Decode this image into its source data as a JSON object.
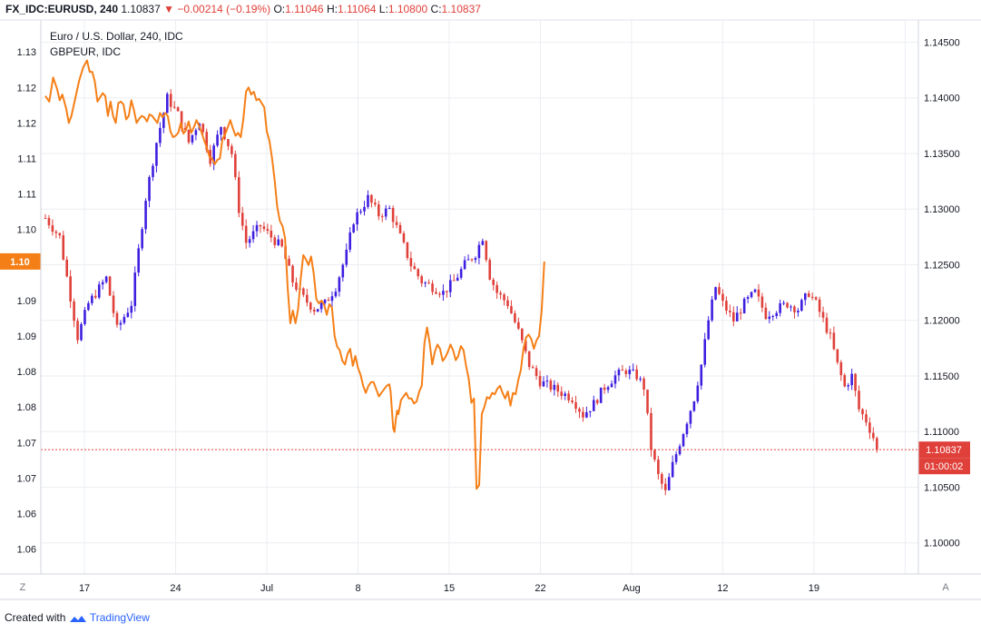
{
  "header": {
    "symbol": "FX_IDC:EURUSD, 240",
    "last": "1.10837",
    "arrow": "▼",
    "change": "−0.00214 (−0.19%)",
    "o_label": "O:",
    "o_value": "1.11046",
    "h_label": "H:",
    "h_value": "1.11064",
    "l_label": "L:",
    "l_value": "1.10800",
    "c_label": "C:",
    "c_value": "1.10837"
  },
  "legend": {
    "main_series": "Euro / U.S. Dollar, 240, IDC",
    "compare_series": "GBPEUR, IDC"
  },
  "badges": {
    "left_value": "1.10",
    "right_price": "1.10837",
    "right_countdown": "01:00:02"
  },
  "buttons": {
    "left": "Z",
    "right": "A"
  },
  "footer": {
    "created_with": "Created with",
    "brand": "TradingView"
  },
  "colors": {
    "up": "#3e1fe0",
    "down": "#e0403a",
    "compare_line": "#f57f17",
    "last_line": "#e0403a",
    "grid": "#eceef2"
  },
  "chart_data": [
    {
      "type": "candlestick",
      "name": "Euro / U.S. Dollar, 240, IDC",
      "axis": "right",
      "y_ticks": [
        1.145,
        1.14,
        1.135,
        1.13,
        1.125,
        1.12,
        1.115,
        1.11,
        1.105,
        1.1
      ],
      "y_tick_labels": [
        "1.14500",
        "1.14000",
        "1.13500",
        "1.13000",
        "1.12500",
        "1.12000",
        "1.11500",
        "1.11000",
        "1.10500",
        "1.10000"
      ],
      "ylim": [
        1.0972,
        1.147
      ],
      "last_value": 1.10837,
      "path": [
        [
          0,
          1.1292
        ],
        [
          4,
          1.1275
        ],
        [
          9,
          1.1185
        ],
        [
          12,
          1.1215
        ],
        [
          17,
          1.1238
        ],
        [
          20,
          1.1192
        ],
        [
          24,
          1.1215
        ],
        [
          28,
          1.131
        ],
        [
          31,
          1.136
        ],
        [
          34,
          1.14
        ],
        [
          37,
          1.1385
        ],
        [
          40,
          1.136
        ],
        [
          43,
          1.138
        ],
        [
          46,
          1.1345
        ],
        [
          49,
          1.1375
        ],
        [
          52,
          1.135
        ],
        [
          54,
          1.13
        ],
        [
          56,
          1.127
        ],
        [
          60,
          1.1285
        ],
        [
          63,
          1.1275
        ],
        [
          66,
          1.1265
        ],
        [
          69,
          1.1235
        ],
        [
          72,
          1.122
        ],
        [
          75,
          1.121
        ],
        [
          78,
          1.1215
        ],
        [
          81,
          1.123
        ],
        [
          84,
          1.126
        ],
        [
          86,
          1.129
        ],
        [
          90,
          1.131
        ],
        [
          93,
          1.1295
        ],
        [
          96,
          1.13
        ],
        [
          99,
          1.1275
        ],
        [
          102,
          1.125
        ],
        [
          105,
          1.1235
        ],
        [
          108,
          1.123
        ],
        [
          111,
          1.1225
        ],
        [
          114,
          1.1235
        ],
        [
          117,
          1.125
        ],
        [
          120,
          1.126
        ],
        [
          122,
          1.1275
        ],
        [
          124,
          1.124
        ],
        [
          126,
          1.1225
        ],
        [
          129,
          1.1215
        ],
        [
          132,
          1.119
        ],
        [
          135,
          1.116
        ],
        [
          138,
          1.1145
        ],
        [
          141,
          1.114
        ],
        [
          144,
          1.1135
        ],
        [
          147,
          1.113
        ],
        [
          150,
          1.1115
        ],
        [
          153,
          1.1125
        ],
        [
          156,
          1.114
        ],
        [
          159,
          1.115
        ],
        [
          162,
          1.1155
        ],
        [
          165,
          1.115
        ],
        [
          167,
          1.114
        ],
        [
          169,
          1.1085
        ],
        [
          171,
          1.106
        ],
        [
          173,
          1.1045
        ],
        [
          175,
          1.107
        ],
        [
          177,
          1.109
        ],
        [
          179,
          1.111
        ],
        [
          181,
          1.113
        ],
        [
          183,
          1.116
        ],
        [
          185,
          1.12
        ],
        [
          187,
          1.123
        ],
        [
          189,
          1.1215
        ],
        [
          192,
          1.12
        ],
        [
          195,
          1.1215
        ],
        [
          198,
          1.1225
        ],
        [
          201,
          1.1205
        ],
        [
          204,
          1.121
        ],
        [
          207,
          1.1215
        ],
        [
          210,
          1.121
        ],
        [
          213,
          1.1225
        ],
        [
          215,
          1.1215
        ],
        [
          217,
          1.12
        ],
        [
          219,
          1.1185
        ],
        [
          221,
          1.116
        ],
        [
          223,
          1.114
        ],
        [
          225,
          1.115
        ],
        [
          227,
          1.112
        ],
        [
          229,
          1.111
        ],
        [
          231,
          1.1095
        ],
        [
          232,
          1.1085
        ]
      ]
    },
    {
      "type": "line",
      "name": "GBPEUR, IDC",
      "axis": "left",
      "y_ticks": [
        1.13,
        1.125,
        1.12,
        1.115,
        1.11,
        1.105,
        1.1,
        1.095,
        1.09,
        1.085,
        1.08,
        1.075,
        1.07,
        1.065,
        1.06
      ],
      "y_tick_labels": [
        "1.13",
        "1.12",
        "1.12",
        "1.11",
        "1.11",
        "1.10",
        "1.10",
        "1.09",
        "1.09",
        "1.08",
        "1.08",
        "1.07",
        "1.07",
        "1.06",
        "1.06"
      ],
      "ylim": [
        1.0565,
        1.1345
      ],
      "last_value": 1.1005,
      "values": [
        [
          0,
          1.1238
        ],
        [
          3,
          1.123
        ],
        [
          6,
          1.1264
        ],
        [
          9,
          1.1248
        ],
        [
          11,
          1.1232
        ],
        [
          13,
          1.124
        ],
        [
          16,
          1.122
        ],
        [
          18,
          1.12
        ],
        [
          20,
          1.121
        ],
        [
          23,
          1.1235
        ],
        [
          26,
          1.126
        ],
        [
          29,
          1.1278
        ],
        [
          32,
          1.1288
        ],
        [
          34,
          1.1272
        ],
        [
          36,
          1.1272
        ],
        [
          38,
          1.1258
        ],
        [
          40,
          1.123
        ],
        [
          42,
          1.1236
        ],
        [
          44,
          1.1242
        ],
        [
          46,
          1.1238
        ],
        [
          48,
          1.121
        ],
        [
          50,
          1.123
        ],
        [
          52,
          1.121
        ],
        [
          54,
          1.12
        ],
        [
          56,
          1.1228
        ],
        [
          58,
          1.123
        ],
        [
          60,
          1.1226
        ],
        [
          62,
          1.1205
        ],
        [
          64,
          1.121
        ],
        [
          66,
          1.1232
        ],
        [
          68,
          1.1218
        ],
        [
          70,
          1.12
        ],
        [
          72,
          1.1206
        ],
        [
          74,
          1.121
        ],
        [
          76,
          1.1208
        ],
        [
          78,
          1.1202
        ],
        [
          80,
          1.1212
        ],
        [
          82,
          1.121
        ],
        [
          84,
          1.1205
        ],
        [
          86,
          1.12
        ],
        [
          88,
          1.1214
        ],
        [
          90,
          1.1208
        ],
        [
          92,
          1.1214
        ],
        [
          94,
          1.121
        ],
        [
          96,
          1.1188
        ],
        [
          98,
          1.118
        ],
        [
          100,
          1.1182
        ],
        [
          102,
          1.1186
        ],
        [
          104,
          1.12
        ],
        [
          106,
          1.1185
        ],
        [
          108,
          1.119
        ],
        [
          110,
          1.1202
        ],
        [
          112,
          1.1186
        ],
        [
          114,
          1.1194
        ],
        [
          116,
          1.1204
        ],
        [
          118,
          1.1196
        ],
        [
          120,
          1.1186
        ],
        [
          122,
          1.1175
        ],
        [
          124,
          1.1165
        ],
        [
          126,
          1.1152
        ],
        [
          128,
          1.115
        ],
        [
          130,
          1.1142
        ],
        [
          132,
          1.1148
        ],
        [
          134,
          1.115
        ],
        [
          136,
          1.1178
        ],
        [
          138,
          1.1184
        ],
        [
          140,
          1.1194
        ],
        [
          142,
          1.1204
        ],
        [
          144,
          1.1192
        ],
        [
          146,
          1.1182
        ],
        [
          148,
          1.1186
        ],
        [
          150,
          1.118
        ],
        [
          152,
          1.1206
        ],
        [
          154,
          1.1244
        ],
        [
          156,
          1.125
        ],
        [
          158,
          1.124
        ],
        [
          160,
          1.1244
        ],
        [
          162,
          1.1232
        ],
        [
          164,
          1.1234
        ],
        [
          166,
          1.1228
        ],
        [
          168,
          1.1222
        ],
        [
          170,
          1.1188
        ],
        [
          172,
          1.1175
        ],
        [
          174,
          1.115
        ],
        [
          176,
          1.112
        ],
        [
          178,
          1.1082
        ],
        [
          180,
          1.1062
        ],
        [
          182,
          1.1055
        ],
        [
          184,
          1.1038
        ],
        [
          186,
          1.0968
        ],
        [
          188,
          1.0918
        ],
        [
          190,
          1.0936
        ],
        [
          192,
          1.0918
        ],
        [
          194,
          1.0938
        ],
        [
          196,
          1.098
        ],
        [
          198,
          1.1014
        ],
        [
          200,
          1.1008
        ],
        [
          202,
          1.1
        ],
        [
          204,
          1.1012
        ],
        [
          206,
          1.0988
        ],
        [
          208,
          1.0952
        ],
        [
          210,
          1.0946
        ],
        [
          212,
          1.095
        ],
        [
          214,
          1.0944
        ],
        [
          216,
          1.093
        ],
        [
          218,
          1.0945
        ],
        [
          220,
          1.094
        ],
        [
          222,
          1.09
        ],
        [
          224,
          1.0885
        ],
        [
          226,
          1.088
        ],
        [
          228,
          1.0865
        ],
        [
          230,
          1.086
        ],
        [
          232,
          1.0875
        ],
        [
          234,
          1.0882
        ],
        [
          236,
          1.0858
        ],
        [
          238,
          1.0872
        ],
        [
          240,
          1.0855
        ],
        [
          242,
          1.0845
        ],
        [
          244,
          1.083
        ],
        [
          246,
          1.082
        ],
        [
          248,
          1.083
        ],
        [
          250,
          1.0835
        ],
        [
          252,
          1.0835
        ],
        [
          254,
          1.0825
        ],
        [
          256,
          1.0815
        ],
        [
          258,
          1.082
        ],
        [
          260,
          1.0825
        ],
        [
          262,
          1.083
        ],
        [
          264,
          1.0832
        ],
        [
          265,
          1.0822
        ],
        [
          267,
          1.077
        ],
        [
          268,
          1.0765
        ],
        [
          269,
          1.0782
        ],
        [
          270,
          1.0795
        ],
        [
          271,
          1.079
        ],
        [
          273,
          1.081
        ],
        [
          275,
          1.0815
        ],
        [
          277,
          1.082
        ],
        [
          279,
          1.0812
        ],
        [
          281,
          1.0812
        ],
        [
          283,
          1.0805
        ],
        [
          285,
          1.0808
        ],
        [
          287,
          1.0822
        ],
        [
          289,
          1.083
        ],
        [
          291,
          1.089
        ],
        [
          293,
          1.0912
        ],
        [
          295,
          1.089
        ],
        [
          297,
          1.086
        ],
        [
          299,
          1.0878
        ],
        [
          301,
          1.0888
        ],
        [
          303,
          1.0882
        ],
        [
          305,
          1.0865
        ],
        [
          307,
          1.087
        ],
        [
          309,
          1.0878
        ],
        [
          311,
          1.0888
        ],
        [
          313,
          1.088
        ],
        [
          315,
          1.0866
        ],
        [
          317,
          1.0872
        ],
        [
          319,
          1.0886
        ],
        [
          321,
          1.088
        ],
        [
          323,
          1.0858
        ],
        [
          325,
          1.084
        ],
        [
          327,
          1.0806
        ],
        [
          329,
          1.0812
        ],
        [
          331,
          1.0685
        ],
        [
          333,
          1.069
        ],
        [
          335,
          1.079
        ],
        [
          337,
          1.08
        ],
        [
          339,
          1.0814
        ],
        [
          341,
          1.0812
        ],
        [
          343,
          1.082
        ],
        [
          345,
          1.0818
        ],
        [
          347,
          1.0826
        ],
        [
          349,
          1.083
        ],
        [
          351,
          1.082
        ],
        [
          353,
          1.0812
        ],
        [
          355,
          1.0822
        ],
        [
          357,
          1.0802
        ],
        [
          359,
          1.082
        ],
        [
          361,
          1.0818
        ],
        [
          363,
          1.0838
        ],
        [
          365,
          1.0852
        ],
        [
          367,
          1.0882
        ],
        [
          369,
          1.0898
        ],
        [
          371,
          1.0902
        ],
        [
          373,
          1.0896
        ],
        [
          375,
          1.0882
        ],
        [
          377,
          1.0894
        ],
        [
          379,
          1.09
        ],
        [
          381,
          1.0936
        ],
        [
          383,
          1.1005
        ]
      ]
    },
    {
      "type": "time_axis",
      "x_ticks": [
        18,
        60,
        102,
        144,
        186,
        228,
        270,
        312,
        354,
        396
      ],
      "x_tick_labels": [
        "17",
        "24",
        "Jul",
        "8",
        "15",
        "22",
        "Aug",
        "12",
        "19",
        ""
      ],
      "x_range": [
        0,
        395
      ]
    }
  ]
}
